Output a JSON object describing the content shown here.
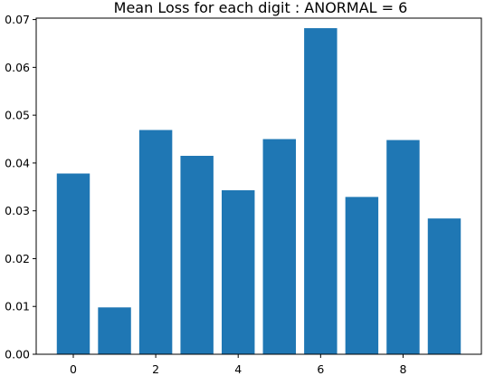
{
  "chart_data": {
    "type": "bar",
    "title": "Mean Loss for each digit : ANORMAL = 6",
    "xlabel": "",
    "ylabel": "",
    "categories": [
      0,
      1,
      2,
      3,
      4,
      5,
      6,
      7,
      8,
      9
    ],
    "values": [
      0.0378,
      0.0098,
      0.0469,
      0.0415,
      0.0343,
      0.045,
      0.0682,
      0.0329,
      0.0448,
      0.0284
    ],
    "bar_color": "#1f77b4",
    "xlim": [
      -0.9,
      9.9
    ],
    "ylim": [
      0,
      0.0703
    ],
    "xticks": [
      0,
      2,
      4,
      6,
      8
    ],
    "xtick_labels": [
      "0",
      "2",
      "4",
      "6",
      "8"
    ],
    "yticks": [
      0.0,
      0.01,
      0.02,
      0.03,
      0.04,
      0.05,
      0.06,
      0.07
    ],
    "ytick_labels": [
      "0.00",
      "0.01",
      "0.02",
      "0.03",
      "0.04",
      "0.05",
      "0.06",
      "0.07"
    ],
    "grid": false,
    "legend": "none"
  }
}
